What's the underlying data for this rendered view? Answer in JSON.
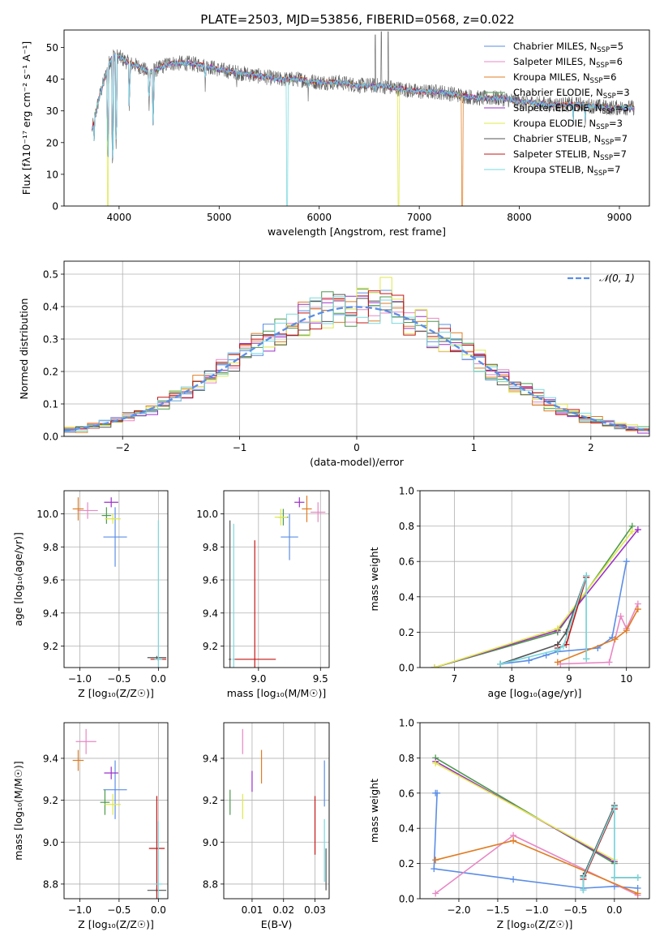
{
  "figure_title": "PLATE=2503, MJD=53856, FIBERID=0568, z=0.022",
  "colors": {
    "chabrier_miles": "#5b8ee6",
    "salpeter_miles": "#e887c4",
    "kroupa_miles": "#e07c22",
    "chabrier_elodie": "#4c9a4c",
    "salpeter_elodie": "#9b30c8",
    "kroupa_elodie": "#dfe84a",
    "chabrier_stelib": "#555555",
    "salpeter_stelib": "#c41515",
    "kroupa_stelib": "#79d9de",
    "gaussian": "#5b8ee6"
  },
  "chart_data": [
    {
      "id": "spectrum",
      "type": "line",
      "title": "PLATE=2503, MJD=53856, FIBERID=0568, z=0.022",
      "xlabel": "wavelength [Angstrom, rest frame]",
      "ylabel": "Flux [fλ10⁻¹⁷ erg cm⁻² s⁻¹ A⁻¹]",
      "xlim": [
        3450,
        9300
      ],
      "ylim": [
        0,
        55.5
      ],
      "xticks": [
        4000,
        5000,
        6000,
        7000,
        8000,
        9000
      ],
      "yticks": [
        0,
        10,
        20,
        30,
        40,
        50
      ],
      "grid": false,
      "legend_position": "upper right",
      "legend": [
        {
          "label": "Chabrier MILES, N",
          "sub": "SSP",
          "tail": "=5",
          "color_key": "chabrier_miles"
        },
        {
          "label": "Salpeter MILES, N",
          "sub": "SSP",
          "tail": "=6",
          "color_key": "salpeter_miles"
        },
        {
          "label": "Kroupa MILES, N",
          "sub": "SSP",
          "tail": "=6",
          "color_key": "kroupa_miles"
        },
        {
          "label": "Chabrier ELODIE, N",
          "sub": "SSP",
          "tail": "=3",
          "color_key": "chabrier_elodie"
        },
        {
          "label": "Salpeter ELODIE, N",
          "sub": "SSP",
          "tail": "=3",
          "color_key": "salpeter_elodie"
        },
        {
          "label": "Kroupa ELODIE, N",
          "sub": "SSP",
          "tail": "=3",
          "color_key": "kroupa_elodie"
        },
        {
          "label": "Chabrier STELIB, N",
          "sub": "SSP",
          "tail": "=7",
          "color_key": "chabrier_stelib"
        },
        {
          "label": "Salpeter STELIB, N",
          "sub": "SSP",
          "tail": "=7",
          "color_key": "salpeter_stelib"
        },
        {
          "label": "Kroupa STELIB, N",
          "sub": "SSP",
          "tail": "=7",
          "color_key": "kroupa_stelib"
        }
      ],
      "continuum": [
        [
          3730,
          24
        ],
        [
          3800,
          34
        ],
        [
          3900,
          45
        ],
        [
          3950,
          48
        ],
        [
          4000,
          47
        ],
        [
          4100,
          45
        ],
        [
          4200,
          44
        ],
        [
          4300,
          42
        ],
        [
          4500,
          45
        ],
        [
          4700,
          45
        ],
        [
          4900,
          44
        ],
        [
          5000,
          43
        ],
        [
          5200,
          42
        ],
        [
          5400,
          41
        ],
        [
          5600,
          40
        ],
        [
          5800,
          40
        ],
        [
          6000,
          39
        ],
        [
          6200,
          39
        ],
        [
          6400,
          38
        ],
        [
          6600,
          38
        ],
        [
          6800,
          37
        ],
        [
          7000,
          36
        ],
        [
          7200,
          36
        ],
        [
          7400,
          35
        ],
        [
          7600,
          34
        ],
        [
          7800,
          34
        ],
        [
          8000,
          33
        ],
        [
          8300,
          32
        ],
        [
          8600,
          32
        ],
        [
          8900,
          31
        ],
        [
          9150,
          31
        ]
      ],
      "features": [
        {
          "x": 3750,
          "y": 19
        },
        {
          "x": 3890,
          "y": 14
        },
        {
          "x": 3935,
          "y": 12
        },
        {
          "x": 3970,
          "y": 18
        },
        {
          "x": 4102,
          "y": 30
        },
        {
          "x": 4300,
          "y": 30
        },
        {
          "x": 4340,
          "y": 24
        },
        {
          "x": 4861,
          "y": 36
        },
        {
          "x": 5175,
          "y": 36
        },
        {
          "x": 5890,
          "y": 33
        },
        {
          "x": 6563,
          "y": 33
        },
        {
          "x": 8540,
          "y": 25
        },
        {
          "x": 8660,
          "y": 24
        }
      ],
      "emission_lines": [
        {
          "x": 6560,
          "y": 54
        },
        {
          "x": 6620,
          "y": 55
        },
        {
          "x": 6690,
          "y": 55
        }
      ],
      "model_dropouts": [
        {
          "x": 3890,
          "model": "kroupa_elodie"
        },
        {
          "x": 5680,
          "model": "kroupa_stelib"
        },
        {
          "x": 6790,
          "model": "kroupa_elodie"
        },
        {
          "x": 7430,
          "model": "kroupa_miles"
        }
      ],
      "data_range": [
        3730,
        9150
      ]
    },
    {
      "id": "residuals",
      "type": "histogram",
      "xlabel": "(data-model)/error",
      "ylabel": "Normed distribution",
      "xlim": [
        -2.5,
        2.5
      ],
      "ylim": [
        0,
        0.54
      ],
      "xticks": [
        -2,
        -1,
        0,
        1,
        2
      ],
      "yticks": [
        0.0,
        0.1,
        0.2,
        0.3,
        0.4,
        0.5
      ],
      "grid": true,
      "legend_position": "upper right",
      "legend_label": "𝒩(0, 1)",
      "bin_width": 0.1,
      "bin_range": [
        -2.5,
        2.5
      ],
      "series_peak_offset": [
        0.45,
        0.38,
        0.41,
        0.43,
        0.42,
        0.49,
        0.39,
        0.44,
        0.42
      ]
    },
    {
      "id": "age_vs_Z",
      "type": "scatter",
      "xlabel": "Z [log₁₀(Z/Z☉)]",
      "ylabel": "age  [log₁₀(age/yr)]",
      "xlim": [
        -1.2,
        0.12
      ],
      "ylim": [
        9.07,
        10.14
      ],
      "xticks": [
        -1.0,
        -0.5,
        0.0
      ],
      "yticks": [
        9.2,
        9.4,
        9.6,
        9.8,
        10.0
      ],
      "grid": true,
      "points": [
        {
          "key": "chabrier_miles",
          "x": -0.55,
          "y": 9.86,
          "xerr": 0.15,
          "yerr": 0.18
        },
        {
          "key": "salpeter_miles",
          "x": -0.9,
          "y": 10.02,
          "xerr": 0.13,
          "yerr": 0.05
        },
        {
          "key": "kroupa_miles",
          "x": -1.02,
          "y": 10.03,
          "xerr": 0.07,
          "yerr": 0.07
        },
        {
          "key": "chabrier_elodie",
          "x": -0.66,
          "y": 9.99,
          "xerr": 0.06,
          "yerr": 0.05
        },
        {
          "key": "salpeter_elodie",
          "x": -0.6,
          "y": 10.07,
          "xerr": 0.09,
          "yerr": 0.03
        },
        {
          "key": "kroupa_elodie",
          "x": -0.58,
          "y": 9.97,
          "xerr": 0.1,
          "yerr": 0.03
        },
        {
          "key": "chabrier_stelib",
          "x": -0.02,
          "y": 9.13,
          "xerr": 0.12,
          "yerr": 0.01
        },
        {
          "key": "salpeter_stelib",
          "x": 0.0,
          "y": 9.12,
          "xerr": 0.1,
          "yerr": 0.01
        },
        {
          "key": "kroupa_stelib",
          "x": 0.0,
          "y": 9.12,
          "xerr": 0.05,
          "yerr": 0.84
        }
      ]
    },
    {
      "id": "age_vs_mass",
      "type": "scatter",
      "xlabel": "mass [log₁₀(M/M☉)]",
      "ylabel": "",
      "xlim": [
        8.72,
        9.57
      ],
      "ylim": [
        9.07,
        10.14
      ],
      "xticks": [
        9.0,
        9.5
      ],
      "yticks": [
        9.2,
        9.4,
        9.6,
        9.8,
        10.0
      ],
      "grid": true,
      "points": [
        {
          "key": "chabrier_miles",
          "x": 9.25,
          "y": 9.86,
          "xerr": 0.07,
          "yerr": 0.14
        },
        {
          "key": "salpeter_miles",
          "x": 9.48,
          "y": 10.01,
          "xerr": 0.06,
          "yerr": 0.06
        },
        {
          "key": "kroupa_miles",
          "x": 9.39,
          "y": 10.03,
          "xerr": 0.04,
          "yerr": 0.08
        },
        {
          "key": "chabrier_elodie",
          "x": 9.2,
          "y": 9.98,
          "xerr": 0.04,
          "yerr": 0.05
        },
        {
          "key": "salpeter_elodie",
          "x": 9.33,
          "y": 10.07,
          "xerr": 0.04,
          "yerr": 0.03
        },
        {
          "key": "kroupa_elodie",
          "x": 9.18,
          "y": 9.98,
          "xerr": 0.05,
          "yerr": 0.05
        },
        {
          "key": "chabrier_stelib",
          "x": 8.77,
          "y": 9.12,
          "xerr": 0.01,
          "yerr": 0.84
        },
        {
          "key": "salpeter_stelib",
          "x": 8.97,
          "y": 9.12,
          "xerr": 0.17,
          "yerr": 0.72
        },
        {
          "key": "kroupa_stelib",
          "x": 8.8,
          "y": 9.12,
          "xerr": 0.01,
          "yerr": 0.82
        }
      ]
    },
    {
      "id": "weight_vs_age",
      "type": "line",
      "xlabel": "age  [log₁₀(age/yr)]",
      "ylabel": "mass weight",
      "xlim": [
        6.4,
        10.4
      ],
      "ylim": [
        0,
        1.0
      ],
      "xticks": [
        7,
        8,
        9,
        10
      ],
      "yticks": [
        0.0,
        0.2,
        0.4,
        0.6,
        0.8,
        1.0
      ],
      "grid": true,
      "series": [
        {
          "key": "chabrier_miles",
          "x": [
            7.8,
            8.3,
            8.6,
            8.8,
            9.5,
            9.75,
            10.0
          ],
          "y": [
            0.02,
            0.04,
            0.07,
            0.09,
            0.11,
            0.17,
            0.6
          ]
        },
        {
          "key": "salpeter_miles",
          "x": [
            8.85,
            9.7,
            9.9,
            10.0,
            10.2
          ],
          "y": [
            0.02,
            0.03,
            0.29,
            0.22,
            0.36
          ]
        },
        {
          "key": "kroupa_miles",
          "x": [
            8.8,
            9.8,
            10.0,
            10.2
          ],
          "y": [
            0.03,
            0.16,
            0.21,
            0.33
          ]
        },
        {
          "key": "chabrier_elodie",
          "x": [
            6.65,
            8.8,
            10.1
          ],
          "y": [
            0.0,
            0.2,
            0.8
          ]
        },
        {
          "key": "salpeter_elodie",
          "x": [
            6.65,
            8.8,
            10.2
          ],
          "y": [
            0.0,
            0.21,
            0.78
          ]
        },
        {
          "key": "kroupa_elodie",
          "x": [
            6.65,
            8.8,
            10.1
          ],
          "y": [
            0.0,
            0.22,
            0.77
          ]
        },
        {
          "key": "chabrier_stelib",
          "x": [
            7.8,
            8.8,
            8.95,
            9.3,
            9.3
          ],
          "y": [
            0.02,
            0.13,
            0.2,
            0.52,
            0.05
          ]
        },
        {
          "key": "salpeter_stelib",
          "x": [
            8.8,
            8.95,
            9.3
          ],
          "y": [
            0.11,
            0.13,
            0.51
          ]
        },
        {
          "key": "kroupa_stelib",
          "x": [
            7.8,
            8.8,
            8.9,
            9.3,
            9.3
          ],
          "y": [
            0.02,
            0.1,
            0.12,
            0.52,
            0.05
          ]
        }
      ]
    },
    {
      "id": "mass_vs_Z",
      "type": "scatter",
      "xlabel": "Z [log₁₀(Z/Z☉)]",
      "ylabel": "mass [log₁₀(M/M☉)]",
      "xlim": [
        -1.2,
        0.12
      ],
      "ylim": [
        8.73,
        9.57
      ],
      "xticks": [
        -1.0,
        -0.5,
        0.0
      ],
      "yticks": [
        8.8,
        9.0,
        9.2,
        9.4
      ],
      "grid": true,
      "points": [
        {
          "key": "chabrier_miles",
          "x": -0.55,
          "y": 9.25,
          "xerr": 0.15,
          "yerr": 0.14
        },
        {
          "key": "salpeter_miles",
          "x": -0.92,
          "y": 9.48,
          "xerr": 0.13,
          "yerr": 0.06
        },
        {
          "key": "kroupa_miles",
          "x": -1.02,
          "y": 9.39,
          "xerr": 0.07,
          "yerr": 0.05
        },
        {
          "key": "chabrier_elodie",
          "x": -0.68,
          "y": 9.19,
          "xerr": 0.06,
          "yerr": 0.06
        },
        {
          "key": "salpeter_elodie",
          "x": -0.6,
          "y": 9.33,
          "xerr": 0.09,
          "yerr": 0.03
        },
        {
          "key": "kroupa_elodie",
          "x": -0.58,
          "y": 9.18,
          "xerr": 0.1,
          "yerr": 0.05
        },
        {
          "key": "chabrier_stelib",
          "x": -0.02,
          "y": 8.77,
          "xerr": 0.12,
          "yerr": 0.01
        },
        {
          "key": "salpeter_stelib",
          "x": -0.02,
          "y": 8.97,
          "xerr": 0.1,
          "yerr": 0.25
        },
        {
          "key": "kroupa_stelib",
          "x": 0.0,
          "y": 8.8,
          "xerr": 0.05,
          "yerr": 0.3
        }
      ]
    },
    {
      "id": "mass_vs_ebv",
      "type": "scatter",
      "xlabel": "E(B-V)",
      "ylabel": "",
      "xlim": [
        0.001,
        0.0345
      ],
      "ylim": [
        8.73,
        9.57
      ],
      "xticks": [
        0.01,
        0.02,
        0.03
      ],
      "yticks": [
        8.8,
        9.0,
        9.2,
        9.4
      ],
      "grid": true,
      "points": [
        {
          "key": "chabrier_miles",
          "x": 0.033,
          "y": 9.28,
          "xerr": 0,
          "yerr": 0.11
        },
        {
          "key": "salpeter_miles",
          "x": 0.007,
          "y": 9.48,
          "xerr": 0,
          "yerr": 0.06
        },
        {
          "key": "kroupa_miles",
          "x": 0.013,
          "y": 9.36,
          "xerr": 0,
          "yerr": 0.08
        },
        {
          "key": "chabrier_elodie",
          "x": 0.003,
          "y": 9.19,
          "xerr": 0,
          "yerr": 0.06
        },
        {
          "key": "salpeter_elodie",
          "x": 0.01,
          "y": 9.29,
          "xerr": 0,
          "yerr": 0.05
        },
        {
          "key": "kroupa_elodie",
          "x": 0.007,
          "y": 9.17,
          "xerr": 0,
          "yerr": 0.06
        },
        {
          "key": "chabrier_stelib",
          "x": 0.0335,
          "y": 8.87,
          "xerr": 0,
          "yerr": 0.1
        },
        {
          "key": "salpeter_stelib",
          "x": 0.03,
          "y": 9.08,
          "xerr": 0,
          "yerr": 0.14
        },
        {
          "key": "kroupa_stelib",
          "x": 0.033,
          "y": 8.96,
          "xerr": 0,
          "yerr": 0.15
        }
      ]
    },
    {
      "id": "weight_vs_Z",
      "type": "line",
      "xlabel": "Z [log₁₀(Z/Z☉)]",
      "ylabel": "mass weight",
      "xlim": [
        -2.5,
        0.45
      ],
      "ylim": [
        0,
        1.0
      ],
      "xticks": [
        -2.0,
        -1.5,
        -1.0,
        -0.5,
        0.0
      ],
      "yticks": [
        0.0,
        0.2,
        0.4,
        0.6,
        0.8,
        1.0
      ],
      "grid": true,
      "series": [
        {
          "key": "chabrier_miles",
          "x": [
            -2.3,
            -2.28,
            -2.32,
            -1.3,
            -0.4,
            0.0,
            0.3
          ],
          "y": [
            0.6,
            0.6,
            0.17,
            0.11,
            0.06,
            0.07,
            0.06
          ]
        },
        {
          "key": "salpeter_miles",
          "x": [
            -2.3,
            -1.3,
            0.3
          ],
          "y": [
            0.03,
            0.36,
            0.02
          ]
        },
        {
          "key": "kroupa_miles",
          "x": [
            -2.3,
            -1.3,
            0.3
          ],
          "y": [
            0.22,
            0.33,
            0.03
          ]
        },
        {
          "key": "chabrier_elodie",
          "x": [
            -2.3,
            0.0
          ],
          "y": [
            0.8,
            0.2
          ]
        },
        {
          "key": "salpeter_elodie",
          "x": [
            -2.3,
            0.0
          ],
          "y": [
            0.78,
            0.21
          ]
        },
        {
          "key": "kroupa_elodie",
          "x": [
            -2.3,
            0.0
          ],
          "y": [
            0.77,
            0.22
          ]
        },
        {
          "key": "chabrier_stelib",
          "x": [
            -0.4,
            -0.4,
            0.0,
            0.0,
            0.3
          ],
          "y": [
            0.05,
            0.13,
            0.53,
            0.12,
            0.12
          ]
        },
        {
          "key": "salpeter_stelib",
          "x": [
            -0.4,
            0.0
          ],
          "y": [
            0.11,
            0.51
          ]
        },
        {
          "key": "kroupa_stelib",
          "x": [
            -0.4,
            -0.4,
            0.0,
            0.0,
            0.3
          ],
          "y": [
            0.05,
            0.12,
            0.52,
            0.12,
            0.12
          ]
        }
      ]
    }
  ]
}
